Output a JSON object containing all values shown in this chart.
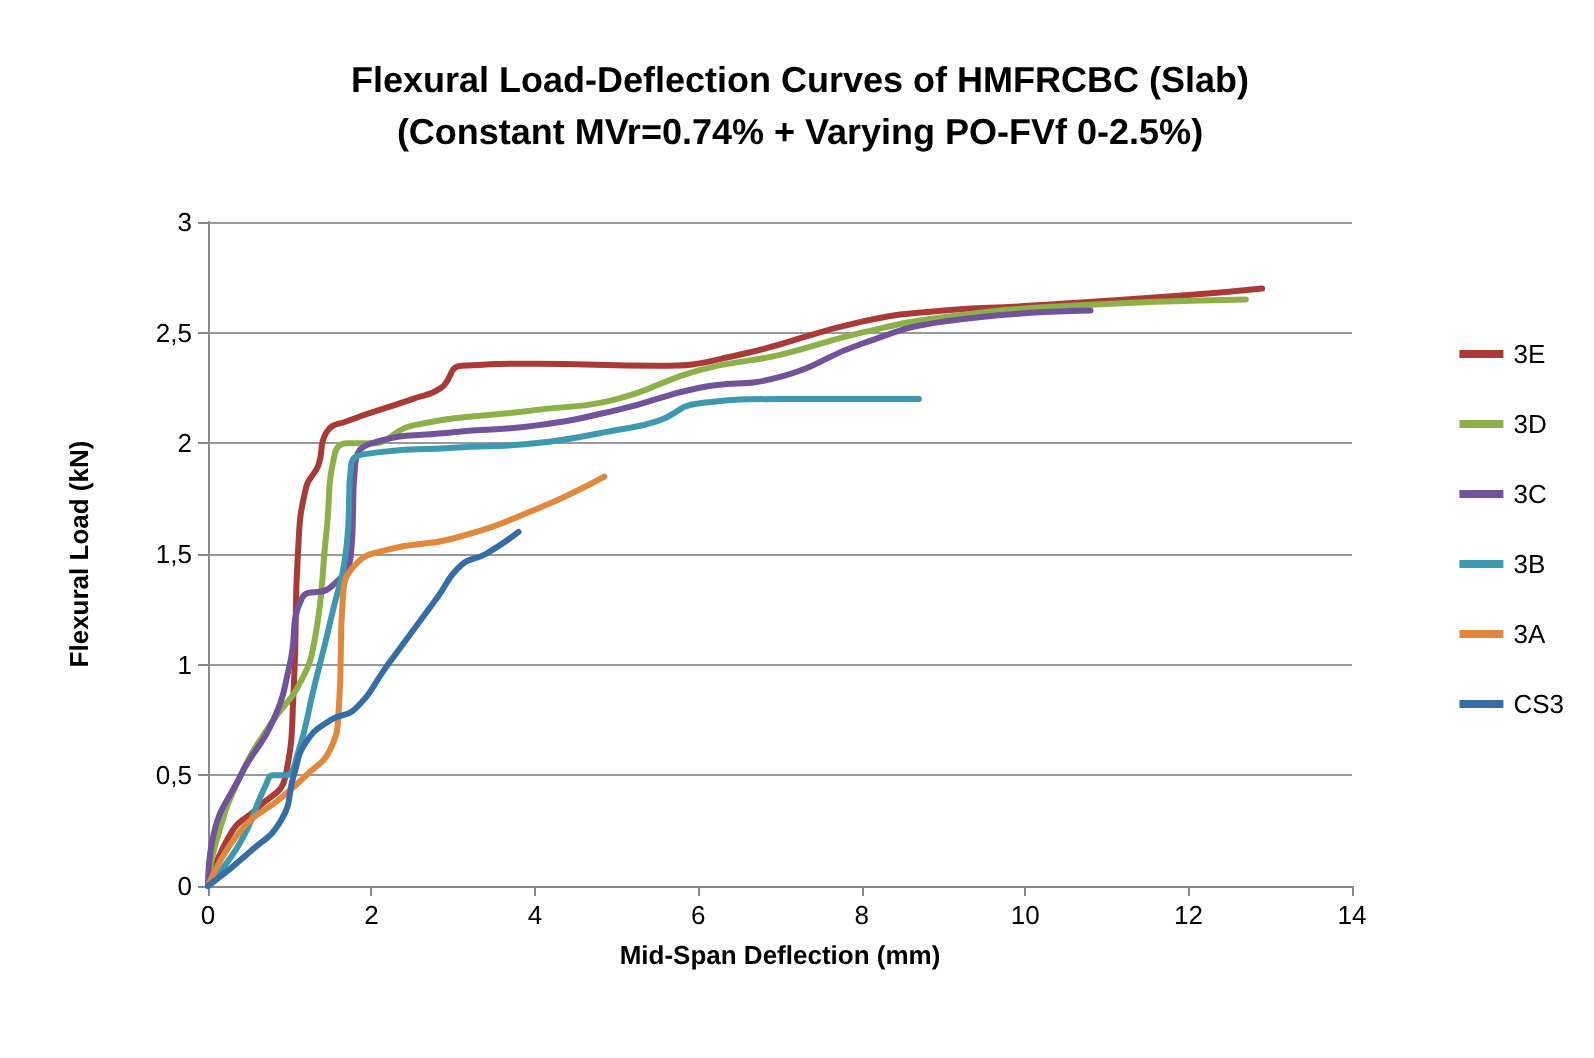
{
  "chart_data": {
    "type": "line",
    "title": "Flexural Load-Deflection Curves of HMFRCBC (Slab)\n(Constant MVr=0.74% + Varying PO-FVf 0-2.5%)",
    "xlabel": "Mid-Span Deflection (mm)",
    "ylabel": "Flexural Load (kN)",
    "xlim": [
      0,
      14
    ],
    "xticks": [
      0,
      2,
      4,
      6,
      8,
      10,
      12,
      14
    ],
    "ylim": [
      0,
      3
    ],
    "yticks": [
      0,
      {
        "value": 0.5,
        "label": "0,5"
      },
      1,
      {
        "value": 1.5,
        "label": "1,5"
      },
      2,
      {
        "value": 2.5,
        "label": "2,5"
      },
      3
    ],
    "grid": "y",
    "legend": "right",
    "marker": "none",
    "line_style": "solid",
    "series": [
      {
        "name": "3E",
        "color": "#aa3a36",
        "x": [
          0,
          0.3,
          0.6,
          0.95,
          1.05,
          1.1,
          1.2,
          1.35,
          1.45,
          1.7,
          2.5,
          2.85,
          3.1,
          4,
          5.5,
          6.5,
          8,
          9,
          10,
          12,
          12.9
        ],
        "values": [
          0,
          0.25,
          0.35,
          0.5,
          0.9,
          1.5,
          1.8,
          1.9,
          2.05,
          2.1,
          2.2,
          2.25,
          2.35,
          2.36,
          2.35,
          2.4,
          2.55,
          2.6,
          2.62,
          2.67,
          2.7
        ]
      },
      {
        "name": "3D",
        "color": "#8db048",
        "x": [
          0,
          0.1,
          0.4,
          0.8,
          1.1,
          1.3,
          1.45,
          1.55,
          1.7,
          2,
          2.5,
          4,
          5,
          6,
          7,
          8,
          9,
          10.5,
          12.7
        ],
        "values": [
          0,
          0.2,
          0.5,
          0.75,
          0.9,
          1.1,
          1.6,
          1.95,
          2,
          2,
          2.08,
          2.15,
          2.2,
          2.33,
          2.4,
          2.5,
          2.57,
          2.62,
          2.65
        ]
      },
      {
        "name": "3C",
        "color": "#70539b",
        "x": [
          0,
          0.05,
          0.4,
          0.8,
          1,
          1.15,
          1.5,
          1.75,
          1.8,
          2,
          3,
          4,
          5,
          6,
          7,
          8,
          9,
          10.8
        ],
        "values": [
          0,
          0.2,
          0.5,
          0.75,
          1,
          1.3,
          1.35,
          1.5,
          1.9,
          2,
          2.05,
          2.08,
          2.15,
          2.25,
          2.3,
          2.45,
          2.55,
          2.6
        ]
      },
      {
        "name": "3B",
        "color": "#3d99b0",
        "x": [
          0,
          0.4,
          0.7,
          0.8,
          0.95,
          1.1,
          1.3,
          1.5,
          1.7,
          1.75,
          1.9,
          3,
          4,
          5,
          5.5,
          6,
          7,
          8.7
        ],
        "values": [
          0,
          0.2,
          0.45,
          0.5,
          0.5,
          0.6,
          0.9,
          1.2,
          1.55,
          1.9,
          1.95,
          1.98,
          2,
          2.06,
          2.1,
          2.18,
          2.2,
          2.2
        ]
      },
      {
        "name": "3A",
        "color": "#e2883c",
        "x": [
          0,
          0.4,
          0.9,
          1.2,
          1.5,
          1.6,
          1.65,
          1.8,
          2.2,
          3,
          4,
          4.85
        ],
        "values": [
          0,
          0.25,
          0.4,
          0.5,
          0.62,
          0.8,
          1.3,
          1.45,
          1.52,
          1.57,
          1.7,
          1.85
        ]
      },
      {
        "name": "CS3",
        "color": "#356ea6",
        "x": [
          0,
          0.5,
          0.9,
          1.05,
          1.2,
          1.5,
          1.8,
          2.2,
          2.8,
          3.1,
          3.4,
          3.8
        ],
        "values": [
          0,
          0.15,
          0.3,
          0.5,
          0.65,
          0.75,
          0.8,
          1,
          1.3,
          1.45,
          1.5,
          1.6
        ]
      }
    ]
  }
}
